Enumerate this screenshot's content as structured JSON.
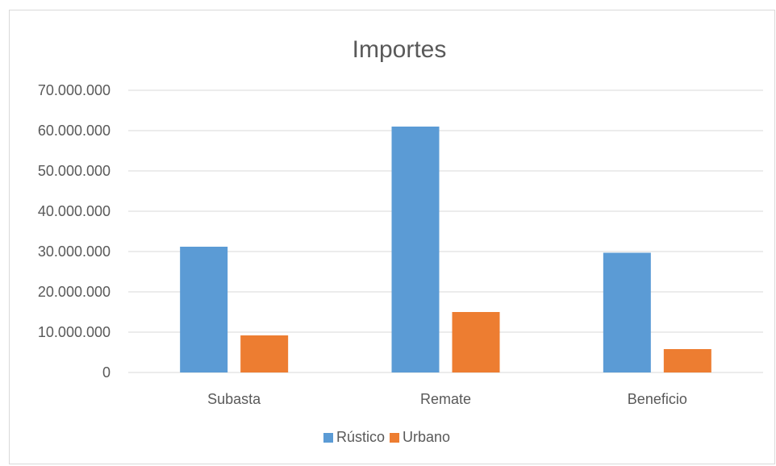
{
  "chart_data": {
    "type": "bar",
    "title": "Importes",
    "xlabel": "",
    "ylabel": "",
    "categories": [
      "Subasta",
      "Remate",
      "Beneficio"
    ],
    "series": [
      {
        "name": "Rústico",
        "color": "#5b9bd5",
        "values": [
          31200000,
          61000000,
          29700000
        ]
      },
      {
        "name": "Urbano",
        "color": "#ed7d31",
        "values": [
          9200000,
          15000000,
          5800000
        ]
      }
    ],
    "ylim": [
      0,
      70000000
    ],
    "yticks": [
      "0",
      "10.000.000",
      "20.000.000",
      "30.000.000",
      "40.000.000",
      "50.000.000",
      "60.000.000",
      "70.000.000"
    ],
    "ytick_values": [
      0,
      10000000,
      20000000,
      30000000,
      40000000,
      50000000,
      60000000,
      70000000
    ],
    "grid": true,
    "legend_position": "bottom",
    "gridline_color": "#d9d9d9"
  }
}
